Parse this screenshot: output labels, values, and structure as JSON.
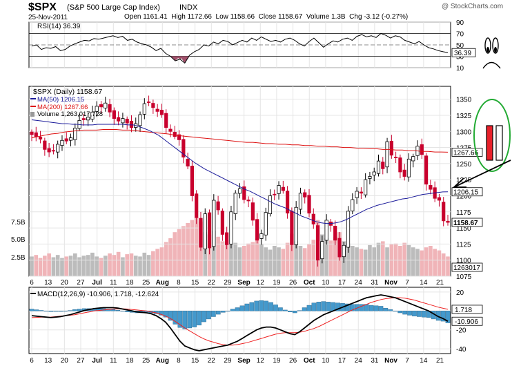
{
  "header": {
    "symbol": "$SPX",
    "name": "(S&P 500 Large Cap Index)",
    "exchange": "INDX",
    "date": "25-Nov-2011",
    "quote_line": "Open 1161.41  High 1172.66  Low 1158.66  Close 1158.67  Volume 1.3B  Chg -3.12 (-0.27%)",
    "change_color": "#c0003c",
    "watermark": "@ StockCharts.com"
  },
  "colors": {
    "price_up": "#000000",
    "price_down": "#c8002d",
    "ma50": "#1a1a9a",
    "ma200": "#dd1111",
    "volume_up": "#bcbcbc",
    "volume_down": "#f0b4b8",
    "macd_line": "#000000",
    "signal_line": "#ee2222",
    "histogram": "#4499cc",
    "annotation_green": "#22aa33"
  },
  "chart_data": [
    {
      "panel": "rsi",
      "type": "line",
      "label": "RSI(14) 36.39",
      "last_value_label": "36.39",
      "ylim": [
        10,
        90
      ],
      "yticks": [
        "90",
        "70",
        "50",
        "30",
        "10"
      ],
      "values": [
        48,
        50,
        42,
        45,
        44,
        47,
        40,
        42,
        48,
        52,
        55,
        58,
        57,
        61,
        60,
        62,
        64,
        66,
        63,
        65,
        58,
        60,
        55,
        52,
        50,
        46,
        40,
        44,
        35,
        30,
        22,
        25,
        18,
        32,
        38,
        42,
        50,
        48,
        55,
        52,
        58,
        56,
        50,
        54,
        58,
        55,
        62,
        58,
        64,
        60,
        56,
        58,
        55,
        60,
        62,
        58,
        52,
        48,
        56,
        62,
        54,
        46,
        52,
        57,
        55,
        60,
        62,
        58,
        65,
        68,
        64,
        66,
        63,
        70,
        67,
        62,
        66,
        64,
        58,
        55,
        52,
        56,
        50,
        45,
        43,
        40,
        38,
        36.39
      ]
    },
    {
      "panel": "price",
      "type": "candlestick",
      "title": "$SPX (Daily) 1158.67",
      "legend": [
        "MA(50) 1206.15",
        "MA(200) 1267.66",
        "Volume 1,263,017,728"
      ],
      "ylim": [
        1075,
        1370
      ],
      "yticks": [
        "1350",
        "1325",
        "1300",
        "1275",
        "1250",
        "1225",
        "1200",
        "1175",
        "1150",
        "1125",
        "1100",
        "1075"
      ],
      "value_labels": {
        "ma200": "1267.66",
        "ma50": "1206.15",
        "close": "1158.67",
        "volume": "1263017"
      },
      "close": [
        1295,
        1292,
        1288,
        1272,
        1268,
        1270,
        1280,
        1286,
        1285,
        1290,
        1305,
        1317,
        1318,
        1322,
        1330,
        1339,
        1338,
        1344,
        1330,
        1320,
        1316,
        1320,
        1313,
        1306,
        1312,
        1326,
        1343,
        1345,
        1337,
        1331,
        1326,
        1306,
        1300,
        1292,
        1287,
        1260,
        1246,
        1200,
        1166,
        1120,
        1172,
        1119,
        1193,
        1178,
        1140,
        1124,
        1175,
        1204,
        1211,
        1194,
        1192,
        1162,
        1131,
        1141,
        1174,
        1200,
        1202,
        1216,
        1208,
        1173,
        1124,
        1182,
        1204,
        1198,
        1173,
        1156,
        1100,
        1129,
        1162,
        1154,
        1131,
        1105,
        1123,
        1176,
        1194,
        1207,
        1204,
        1225,
        1230,
        1237,
        1254,
        1242,
        1284,
        1263,
        1259,
        1237,
        1230,
        1257,
        1261,
        1277,
        1264,
        1218,
        1210,
        1196,
        1193,
        1161,
        1158.67
      ],
      "ma50": [
        1318,
        1317,
        1316,
        1315,
        1314,
        1313,
        1312,
        1312,
        1311,
        1311,
        1310,
        1310,
        1310,
        1311,
        1311,
        1311,
        1311,
        1311,
        1311,
        1310,
        1310,
        1308,
        1305,
        1302,
        1298,
        1294,
        1288,
        1282,
        1276,
        1270,
        1264,
        1258,
        1252,
        1247,
        1242,
        1238,
        1234,
        1230,
        1226,
        1222,
        1218,
        1214,
        1210,
        1207,
        1203,
        1199,
        1195,
        1191,
        1187,
        1184,
        1181,
        1177,
        1173,
        1169,
        1166,
        1163,
        1160,
        1158,
        1157,
        1157,
        1158,
        1160,
        1163,
        1167,
        1171,
        1175,
        1179,
        1182,
        1185,
        1187,
        1189,
        1191,
        1193,
        1195,
        1196,
        1198,
        1200,
        1202,
        1203,
        1204,
        1205,
        1206,
        1206.15
      ],
      "ma200": [
        1290,
        1292,
        1294,
        1296,
        1297,
        1299,
        1300,
        1301,
        1302,
        1302,
        1302,
        1303,
        1303,
        1303,
        1302,
        1302,
        1301,
        1300,
        1299,
        1298,
        1297,
        1296,
        1294,
        1293,
        1292,
        1291,
        1290,
        1289,
        1288,
        1287,
        1286,
        1285,
        1284,
        1283,
        1283,
        1282,
        1281,
        1281,
        1280,
        1280,
        1279,
        1279,
        1278,
        1278,
        1277,
        1277,
        1276,
        1276,
        1275,
        1275,
        1274,
        1274,
        1273,
        1273,
        1272,
        1272,
        1271,
        1271,
        1270,
        1270,
        1269,
        1269,
        1268,
        1268,
        1267.66
      ],
      "volume_relative": [
        0.26,
        0.28,
        0.24,
        0.27,
        0.3,
        0.25,
        0.28,
        0.24,
        0.26,
        0.27,
        0.3,
        0.25,
        0.27,
        0.28,
        0.31,
        0.26,
        0.24,
        0.27,
        0.3,
        0.28,
        0.32,
        0.25,
        0.29,
        0.3,
        0.27,
        0.26,
        0.31,
        0.28,
        0.33,
        0.36,
        0.38,
        0.45,
        0.5,
        0.58,
        0.62,
        0.66,
        0.7,
        0.74,
        0.78,
        0.72,
        0.58,
        0.55,
        0.6,
        0.52,
        0.46,
        0.48,
        0.42,
        0.44,
        0.38,
        0.4,
        0.43,
        0.45,
        0.5,
        0.42,
        0.38,
        0.35,
        0.4,
        0.38,
        0.36,
        0.44,
        0.56,
        0.46,
        0.4,
        0.37,
        0.42,
        0.48,
        0.74,
        0.55,
        0.5,
        0.47,
        0.52,
        0.58,
        0.46,
        0.43,
        0.4,
        0.38,
        0.36,
        0.35,
        0.41,
        0.38,
        0.44,
        0.46,
        0.38,
        0.42,
        0.43,
        0.4,
        0.44,
        0.41,
        0.38,
        0.36,
        0.34,
        0.38,
        0.4,
        0.36,
        0.34,
        0.3,
        0.26
      ],
      "volume_axis": [
        "7.5B",
        "5.0B",
        "2.5B"
      ]
    },
    {
      "panel": "macd",
      "type": "line",
      "title": "MACD(12,26,9) -10.906, 1.718, -12.624",
      "value_labels": {
        "signal": "1.718",
        "macd": "-10.906"
      },
      "ylim": [
        -45,
        25
      ],
      "yticks": [
        "20",
        "0",
        "-20",
        "-40"
      ],
      "macd": [
        -5,
        -5.5,
        -6,
        -6.5,
        -7,
        -6.5,
        -6,
        -5,
        -4,
        -2.5,
        -1,
        0.5,
        1.5,
        2.5,
        3,
        3.5,
        3.5,
        3.5,
        3,
        2,
        1,
        0,
        -1,
        -1.5,
        -2,
        -3,
        -5,
        -8,
        -12,
        -18,
        -25,
        -32,
        -37,
        -39,
        -41,
        -42,
        -41,
        -40,
        -39,
        -38,
        -37,
        -36,
        -34,
        -32,
        -29,
        -26,
        -23,
        -20,
        -18,
        -17,
        -17,
        -18,
        -20,
        -22,
        -24,
        -25,
        -22,
        -18,
        -14,
        -10,
        -7,
        -4,
        -2,
        0,
        2,
        4,
        6,
        8,
        10,
        12,
        14,
        15,
        16,
        17,
        16,
        15,
        14,
        12,
        10,
        8,
        6,
        4,
        2,
        0,
        -3,
        -6,
        -8,
        -10.906
      ],
      "signal": [
        -7,
        -6.8,
        -6.6,
        -6.5,
        -6.4,
        -6,
        -5.5,
        -5,
        -4.5,
        -4,
        -3,
        -2,
        -1,
        0,
        0.5,
        1,
        1.5,
        2,
        2.2,
        2.3,
        2,
        1.5,
        1,
        0.5,
        0,
        -1,
        -2,
        -3.5,
        -5.5,
        -8,
        -11,
        -14.5,
        -18,
        -21,
        -24,
        -27,
        -29.5,
        -31.5,
        -33,
        -34.5,
        -35.5,
        -36,
        -36,
        -35.5,
        -34.5,
        -33.5,
        -32,
        -30.5,
        -29,
        -27.5,
        -26,
        -24.5,
        -23.5,
        -23,
        -23,
        -23,
        -22.5,
        -21.5,
        -20,
        -18.5,
        -16.5,
        -14,
        -11.5,
        -9,
        -6.5,
        -4,
        -1.5,
        1,
        3,
        5,
        7,
        9,
        10.5,
        12,
        13,
        13.5,
        14,
        14,
        13.5,
        12.5,
        11.5,
        10,
        8.5,
        7,
        5.5,
        4,
        2.8,
        1.718
      ],
      "histogram": [
        2,
        1.3,
        0.6,
        0,
        -0.6,
        -0.5,
        -0.5,
        0,
        0.5,
        1.5,
        2,
        2.5,
        2.5,
        2.5,
        2.5,
        2.5,
        2,
        1.5,
        0.8,
        -0.3,
        -1,
        -1.5,
        -2,
        -2,
        -2,
        -2,
        -3,
        -4.5,
        -6.5,
        -10,
        -14,
        -17.5,
        -19,
        -18,
        -17,
        -15,
        -11.5,
        -8.5,
        -6,
        -3.5,
        -1.5,
        0,
        2,
        3.5,
        5.5,
        7.5,
        9,
        10.5,
        11,
        10.5,
        9,
        6.5,
        3.5,
        1,
        -1,
        -2,
        0.5,
        3.5,
        6,
        8.5,
        9.5,
        10,
        9.5,
        9,
        8.5,
        8,
        7.5,
        7,
        7,
        7,
        7,
        6,
        5.5,
        5,
        3,
        1.5,
        0,
        -2,
        -3.5,
        -4.5,
        -5.5,
        -6,
        -6.5,
        -7,
        -8.5,
        -10,
        -10.8,
        -12.624
      ]
    },
    {
      "panel": "x-axis",
      "type": "axis",
      "tick_labels": [
        "6",
        "13",
        "20",
        "27",
        "Jul",
        "11",
        "18",
        "25",
        "Aug",
        "8",
        "15",
        "22",
        "29",
        "Sep",
        "12",
        "19",
        "26",
        "Oct",
        "10",
        "17",
        "24",
        "31",
        "Nov",
        "7",
        "14",
        "21"
      ]
    }
  ]
}
